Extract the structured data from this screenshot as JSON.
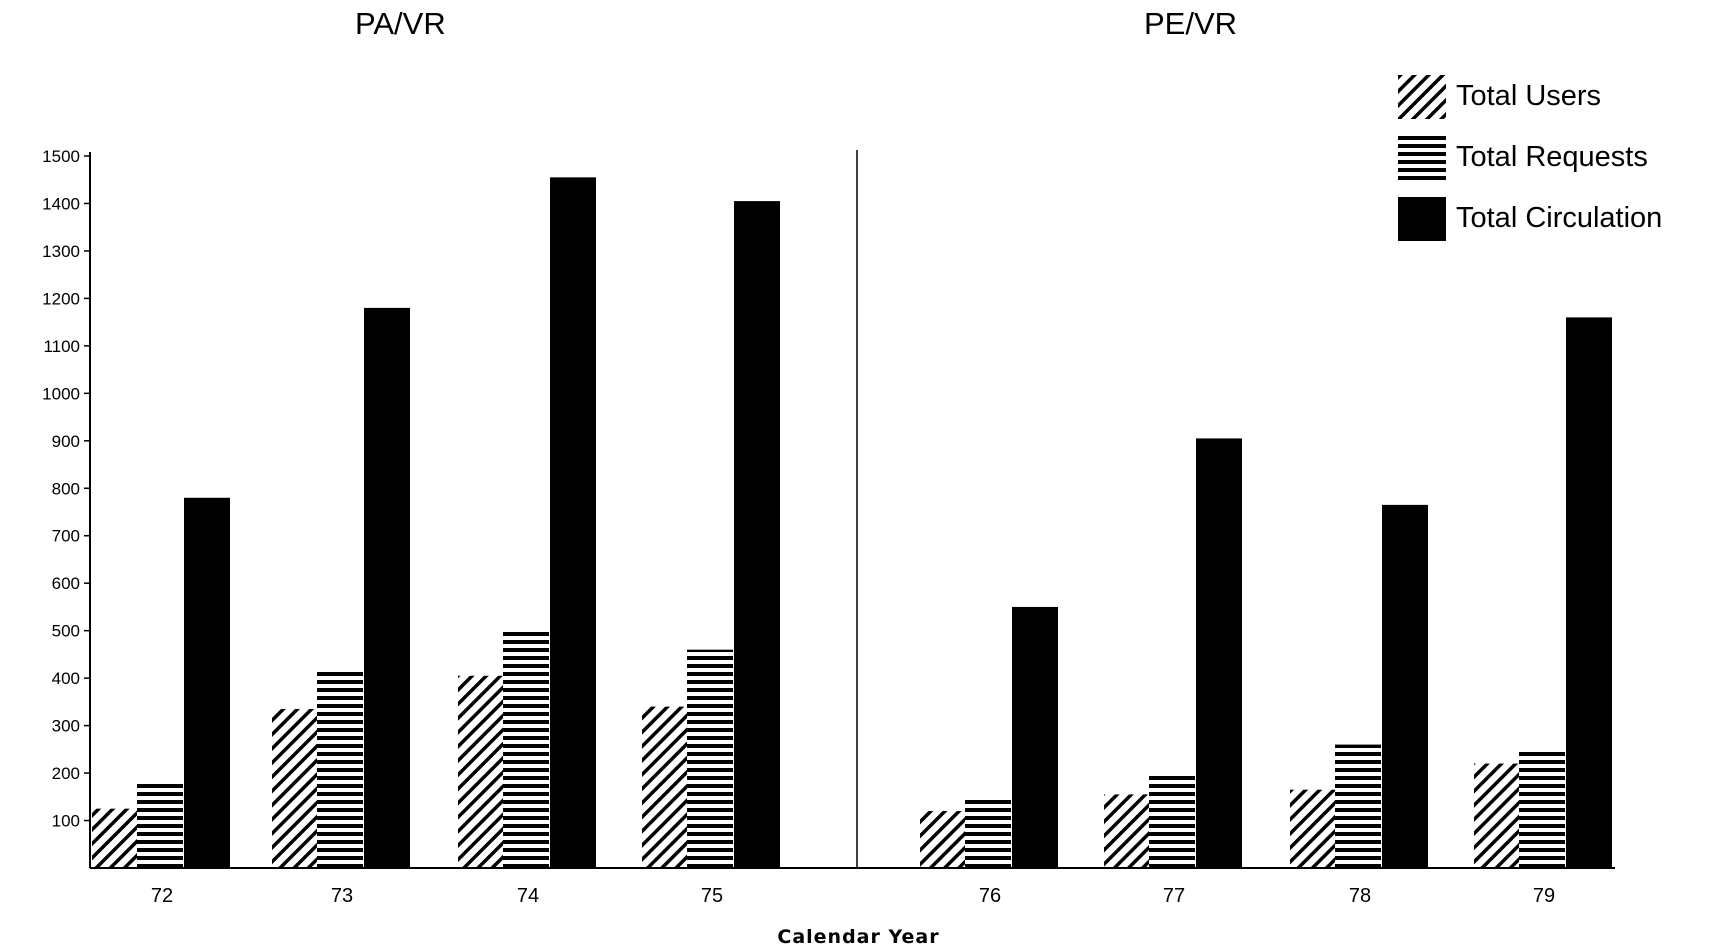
{
  "chart_data": {
    "type": "bar",
    "panels": [
      {
        "title": "PA/VR",
        "categories": [
          "72",
          "73",
          "74",
          "75"
        ]
      },
      {
        "title": "PE/VR",
        "categories": [
          "76",
          "77",
          "78",
          "79"
        ]
      }
    ],
    "categories": [
      "72",
      "73",
      "74",
      "75",
      "76",
      "77",
      "78",
      "79"
    ],
    "series": [
      {
        "name": "Total Users",
        "pattern": "diagonal-hatch",
        "values": [
          125,
          335,
          405,
          340,
          120,
          155,
          165,
          220
        ]
      },
      {
        "name": "Total Requests",
        "pattern": "horizontal-stripes",
        "values": [
          185,
          420,
          505,
          460,
          145,
          195,
          260,
          250
        ]
      },
      {
        "name": "Total Circulation",
        "pattern": "solid",
        "values": [
          780,
          1180,
          1455,
          1405,
          550,
          905,
          765,
          1160
        ]
      }
    ],
    "xlabel": "Calendar Year",
    "ylabel": "",
    "ylim": [
      0,
      1500
    ],
    "yticks": [
      "100",
      "200",
      "300",
      "400",
      "500",
      "600",
      "700",
      "800",
      "900",
      "1000",
      "1100",
      "1200",
      "1300",
      "1400",
      "1500"
    ],
    "grid": false,
    "legend_position": "top-right",
    "colors": {
      "bar": "#000000",
      "background": "#ffffff"
    }
  }
}
